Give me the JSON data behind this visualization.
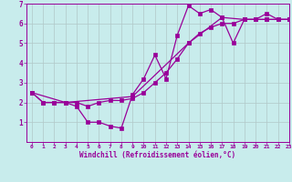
{
  "title": "",
  "xlabel": "Windchill (Refroidissement éolien,°C)",
  "ylabel": "",
  "bg_color": "#c8ecec",
  "line_color": "#990099",
  "grid_color": "#b0c8c8",
  "xlim": [
    -0.5,
    23
  ],
  "ylim": [
    0,
    7
  ],
  "xticks": [
    0,
    1,
    2,
    3,
    4,
    5,
    6,
    7,
    8,
    9,
    10,
    11,
    12,
    13,
    14,
    15,
    16,
    17,
    18,
    19,
    20,
    21,
    22,
    23
  ],
  "yticks": [
    1,
    2,
    3,
    4,
    5,
    6,
    7
  ],
  "line1_x": [
    0,
    1,
    2,
    3,
    4,
    5,
    6,
    7,
    8,
    9,
    10,
    11,
    12,
    13,
    14,
    15,
    16,
    17,
    18,
    19,
    20,
    21,
    22,
    23
  ],
  "line1_y": [
    2.5,
    2.0,
    2.0,
    2.0,
    1.8,
    1.0,
    1.0,
    0.8,
    0.7,
    2.4,
    3.2,
    4.4,
    3.2,
    5.4,
    6.9,
    6.5,
    6.7,
    6.3,
    5.0,
    6.2,
    6.2,
    6.5,
    6.2,
    6.2
  ],
  "line2_x": [
    0,
    1,
    2,
    3,
    4,
    5,
    6,
    7,
    8,
    9,
    10,
    11,
    12,
    13,
    14,
    15,
    16,
    17,
    18,
    19,
    20,
    21,
    22,
    23
  ],
  "line2_y": [
    2.5,
    2.0,
    2.0,
    2.0,
    2.0,
    1.8,
    2.0,
    2.1,
    2.1,
    2.2,
    2.5,
    3.0,
    3.5,
    4.2,
    5.0,
    5.5,
    5.8,
    6.0,
    6.0,
    6.2,
    6.2,
    6.2,
    6.2,
    6.2
  ],
  "line3_x": [
    0,
    3,
    9,
    14,
    17,
    19,
    21,
    23
  ],
  "line3_y": [
    2.5,
    2.0,
    2.3,
    5.0,
    6.3,
    6.2,
    6.2,
    6.2
  ],
  "marker_size": 2.5,
  "linewidth": 0.9
}
